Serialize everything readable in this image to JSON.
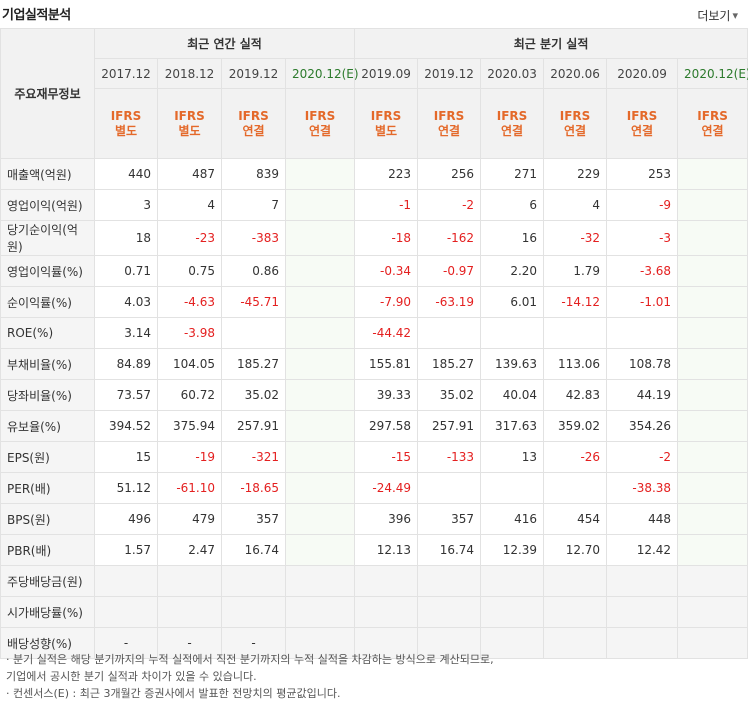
{
  "header": {
    "title": "기업실적분석",
    "more_label": "더보기",
    "more_icon": "chevron-down-icon"
  },
  "table": {
    "row_header": "주요재무정보",
    "groups": [
      {
        "label": "최근 연간 실적"
      },
      {
        "label": "최근 분기 실적"
      }
    ],
    "periods": [
      "2017.12",
      "2018.12",
      "2019.12",
      "2020.12(E)",
      "2019.09",
      "2019.12",
      "2020.03",
      "2020.06",
      "2020.09",
      "2020.12(E)"
    ],
    "accounting": [
      [
        "IFRS",
        "별도"
      ],
      [
        "IFRS",
        "별도"
      ],
      [
        "IFRS",
        "연결"
      ],
      [
        "IFRS",
        "연결"
      ],
      [
        "IFRS",
        "별도"
      ],
      [
        "IFRS",
        "연결"
      ],
      [
        "IFRS",
        "연결"
      ],
      [
        "IFRS",
        "연결"
      ],
      [
        "IFRS",
        "연결"
      ],
      [
        "IFRS",
        "연결"
      ]
    ],
    "rows": [
      {
        "label": "매출액(억원)",
        "values": [
          "440",
          "487",
          "839",
          "",
          "223",
          "256",
          "271",
          "229",
          "253",
          ""
        ]
      },
      {
        "label": "영업이익(억원)",
        "values": [
          "3",
          "4",
          "7",
          "",
          "-1",
          "-2",
          "6",
          "4",
          "-9",
          ""
        ]
      },
      {
        "label": "당기순이익(억원)",
        "values": [
          "18",
          "-23",
          "-383",
          "",
          "-18",
          "-162",
          "16",
          "-32",
          "-3",
          ""
        ]
      },
      {
        "label": "영업이익률(%)",
        "values": [
          "0.71",
          "0.75",
          "0.86",
          "",
          "-0.34",
          "-0.97",
          "2.20",
          "1.79",
          "-3.68",
          ""
        ]
      },
      {
        "label": "순이익률(%)",
        "values": [
          "4.03",
          "-4.63",
          "-45.71",
          "",
          "-7.90",
          "-63.19",
          "6.01",
          "-14.12",
          "-1.01",
          ""
        ]
      },
      {
        "label": "ROE(%)",
        "values": [
          "3.14",
          "-3.98",
          "",
          "",
          "-44.42",
          "",
          "",
          "",
          "",
          ""
        ]
      },
      {
        "label": "부채비율(%)",
        "values": [
          "84.89",
          "104.05",
          "185.27",
          "",
          "155.81",
          "185.27",
          "139.63",
          "113.06",
          "108.78",
          ""
        ]
      },
      {
        "label": "당좌비율(%)",
        "values": [
          "73.57",
          "60.72",
          "35.02",
          "",
          "39.33",
          "35.02",
          "40.04",
          "42.83",
          "44.19",
          ""
        ]
      },
      {
        "label": "유보율(%)",
        "values": [
          "394.52",
          "375.94",
          "257.91",
          "",
          "297.58",
          "257.91",
          "317.63",
          "359.02",
          "354.26",
          ""
        ]
      },
      {
        "label": "EPS(원)",
        "values": [
          "15",
          "-19",
          "-321",
          "",
          "-15",
          "-133",
          "13",
          "-26",
          "-2",
          ""
        ]
      },
      {
        "label": "PER(배)",
        "values": [
          "51.12",
          "-61.10",
          "-18.65",
          "",
          "-24.49",
          "",
          "",
          "",
          "-38.38",
          ""
        ]
      },
      {
        "label": "BPS(원)",
        "values": [
          "496",
          "479",
          "357",
          "",
          "396",
          "357",
          "416",
          "454",
          "448",
          ""
        ]
      },
      {
        "label": "PBR(배)",
        "values": [
          "1.57",
          "2.47",
          "16.74",
          "",
          "12.13",
          "16.74",
          "12.39",
          "12.70",
          "12.42",
          ""
        ]
      },
      {
        "label": "주당배당금(원)",
        "values": [
          "",
          "",
          "",
          "",
          "",
          "",
          "",
          "",
          "",
          ""
        ]
      },
      {
        "label": "시가배당률(%)",
        "values": [
          "",
          "",
          "",
          "",
          "",
          "",
          "",
          "",
          "",
          ""
        ]
      },
      {
        "label": "배당성향(%)",
        "values": [
          "-",
          "-",
          "-",
          "",
          "",
          "",
          "",
          "",
          "",
          ""
        ]
      }
    ]
  },
  "notes": [
    "· 분기 실적은 해당 분기까지의 누적 실적에서 직전 분기까지의 누적 실적을 차감하는 방식으로 계산되므로,",
    "  기업에서 공시한 분기 실적과 차이가 있을 수 있습니다.",
    "· 컨센서스(E) : 최근 3개월간 증권사에서 발표한 전망치의 평균값입니다."
  ],
  "colors": {
    "negative": "#e42020",
    "accounting": "#e4692a",
    "estimate": "#2c7a2c",
    "header_bg": "#f2f2f2"
  }
}
